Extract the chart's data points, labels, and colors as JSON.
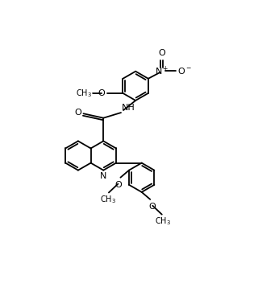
{
  "bg": "#ffffff",
  "lc": "#000000",
  "lw": 1.3,
  "fs": 7.5,
  "figw": 3.2,
  "figh": 3.78,
  "dpi": 100,
  "xlim": [
    -1.0,
    9.5
  ],
  "ylim": [
    -1.2,
    10.5
  ]
}
